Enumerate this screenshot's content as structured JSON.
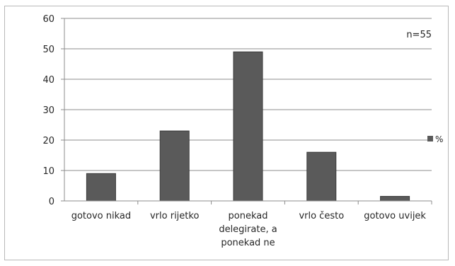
{
  "chart_data": {
    "type": "bar",
    "categories": [
      [
        "gotovo nikad"
      ],
      [
        "vrlo rijetko"
      ],
      [
        "ponekad",
        "delegirate, a",
        "ponekad ne"
      ],
      [
        "vrlo često"
      ],
      [
        "gotovo uvijek"
      ]
    ],
    "series": [
      {
        "name": "%",
        "values": [
          9,
          23,
          49,
          16,
          1.5
        ]
      }
    ],
    "ylim": [
      0,
      60
    ],
    "yticks": [
      0,
      10,
      20,
      30,
      40,
      50,
      60
    ],
    "grid": true,
    "legend": "right",
    "annotation": "n=55",
    "colors": {
      "bar": "#5a5a5a",
      "bar_edge": "#3a3a3a",
      "grid": "#8c8c8c",
      "axis": "#8c8c8c"
    }
  }
}
